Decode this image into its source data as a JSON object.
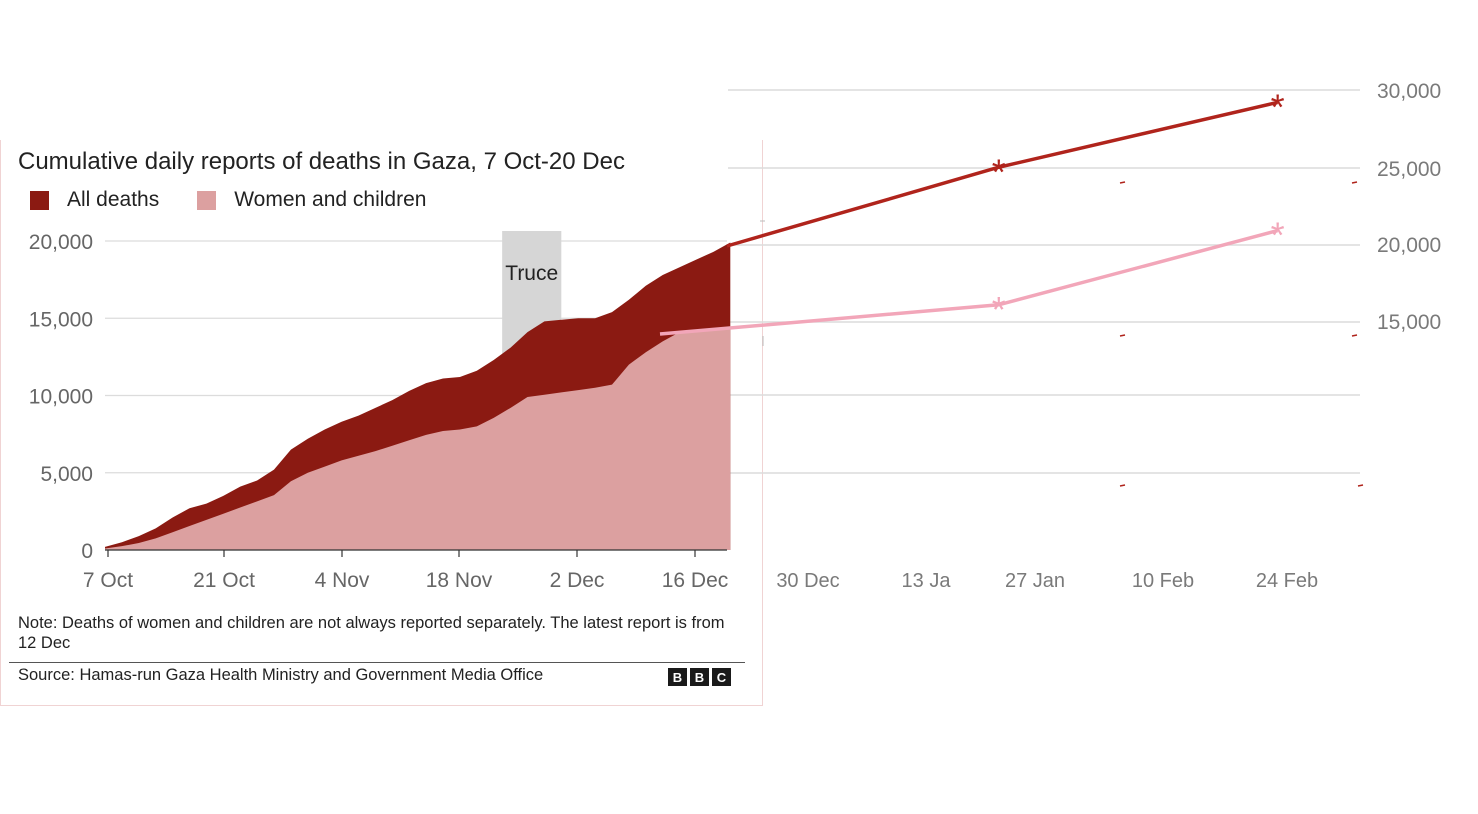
{
  "chart_data": {
    "type": "area",
    "title": "Cumulative daily reports of deaths in Gaza, 7 Oct-20 Dec",
    "legend_position": "top-left",
    "x_ticks_left": [
      "7 Oct",
      "21 Oct",
      "4 Nov",
      "18 Nov",
      "2 Dec",
      "16 Dec"
    ],
    "x_ticks_right": [
      "30 Dec",
      "13 Ja",
      "27 Jan",
      "10 Feb",
      "24 Feb"
    ],
    "y_ticks_left": [
      "0",
      "5,000",
      "10,000",
      "15,000",
      "20,000"
    ],
    "y_ticks_right": [
      "30,000",
      "25,000",
      "20,000",
      "15,000"
    ],
    "y_range_left": [
      0,
      20000
    ],
    "grid": true,
    "annotation": {
      "label": "Truce",
      "x_start_day": 47,
      "x_end_day": 54
    },
    "series": [
      {
        "name": "All deaths",
        "color": "#8b1a12",
        "x_days": [
          0,
          2,
          4,
          6,
          8,
          10,
          12,
          14,
          16,
          18,
          20,
          22,
          24,
          26,
          28,
          30,
          32,
          34,
          36,
          38,
          40,
          42,
          44,
          46,
          48,
          50,
          52,
          54,
          56,
          58,
          60,
          62,
          64,
          66,
          68,
          70,
          72,
          74
        ],
        "values": [
          200,
          500,
          900,
          1400,
          2100,
          2700,
          3000,
          3500,
          4100,
          4500,
          5200,
          6500,
          7200,
          7800,
          8300,
          8700,
          9200,
          9700,
          10300,
          10800,
          11100,
          11200,
          11600,
          12300,
          13100,
          14100,
          14800,
          14900,
          15000,
          15000,
          15400,
          16200,
          17100,
          17800,
          18300,
          18800,
          19300,
          19900
        ]
      },
      {
        "name": "Women and children",
        "color": "#dca0a0",
        "x_days": [
          0,
          2,
          4,
          6,
          8,
          10,
          12,
          14,
          16,
          18,
          20,
          22,
          24,
          26,
          28,
          30,
          32,
          34,
          36,
          38,
          40,
          42,
          44,
          46,
          48,
          50,
          52,
          54,
          56,
          58,
          60,
          62,
          64,
          66,
          68,
          70,
          72,
          74
        ],
        "values": [
          100,
          250,
          450,
          750,
          1150,
          1550,
          1950,
          2350,
          2750,
          3150,
          3550,
          4450,
          5000,
          5400,
          5800,
          6100,
          6400,
          6750,
          7100,
          7450,
          7700,
          7800,
          8000,
          8550,
          9200,
          9900,
          10050,
          10200,
          10350,
          10500,
          10700,
          12000,
          12800,
          13500,
          14100,
          14200,
          14300,
          14400
        ]
      }
    ],
    "extension_series": [
      {
        "name": "All deaths",
        "color": "#b0241c",
        "x": [
          "20 Dec",
          "20 Jan",
          "22 Feb"
        ],
        "values": [
          20000,
          25000,
          29200
        ]
      },
      {
        "name": "Women and children",
        "color": "#f2a6b9",
        "x": [
          "15 Dec",
          "20 Jan",
          "22 Feb"
        ],
        "values": [
          14200,
          16100,
          20900
        ]
      }
    ]
  },
  "texts": {
    "title": "Cumulative daily reports of deaths in Gaza, 7 Oct-20 Dec",
    "legend_all": "All deaths",
    "legend_wc": "Women and children",
    "truce": "Truce",
    "note": "Note: Deaths of women and children are not always reported separately. The latest report is from 12 Dec",
    "source": "Source: Hamas-run Gaza Health Ministry and Government Media Office",
    "bbc": [
      "B",
      "B",
      "C"
    ]
  }
}
